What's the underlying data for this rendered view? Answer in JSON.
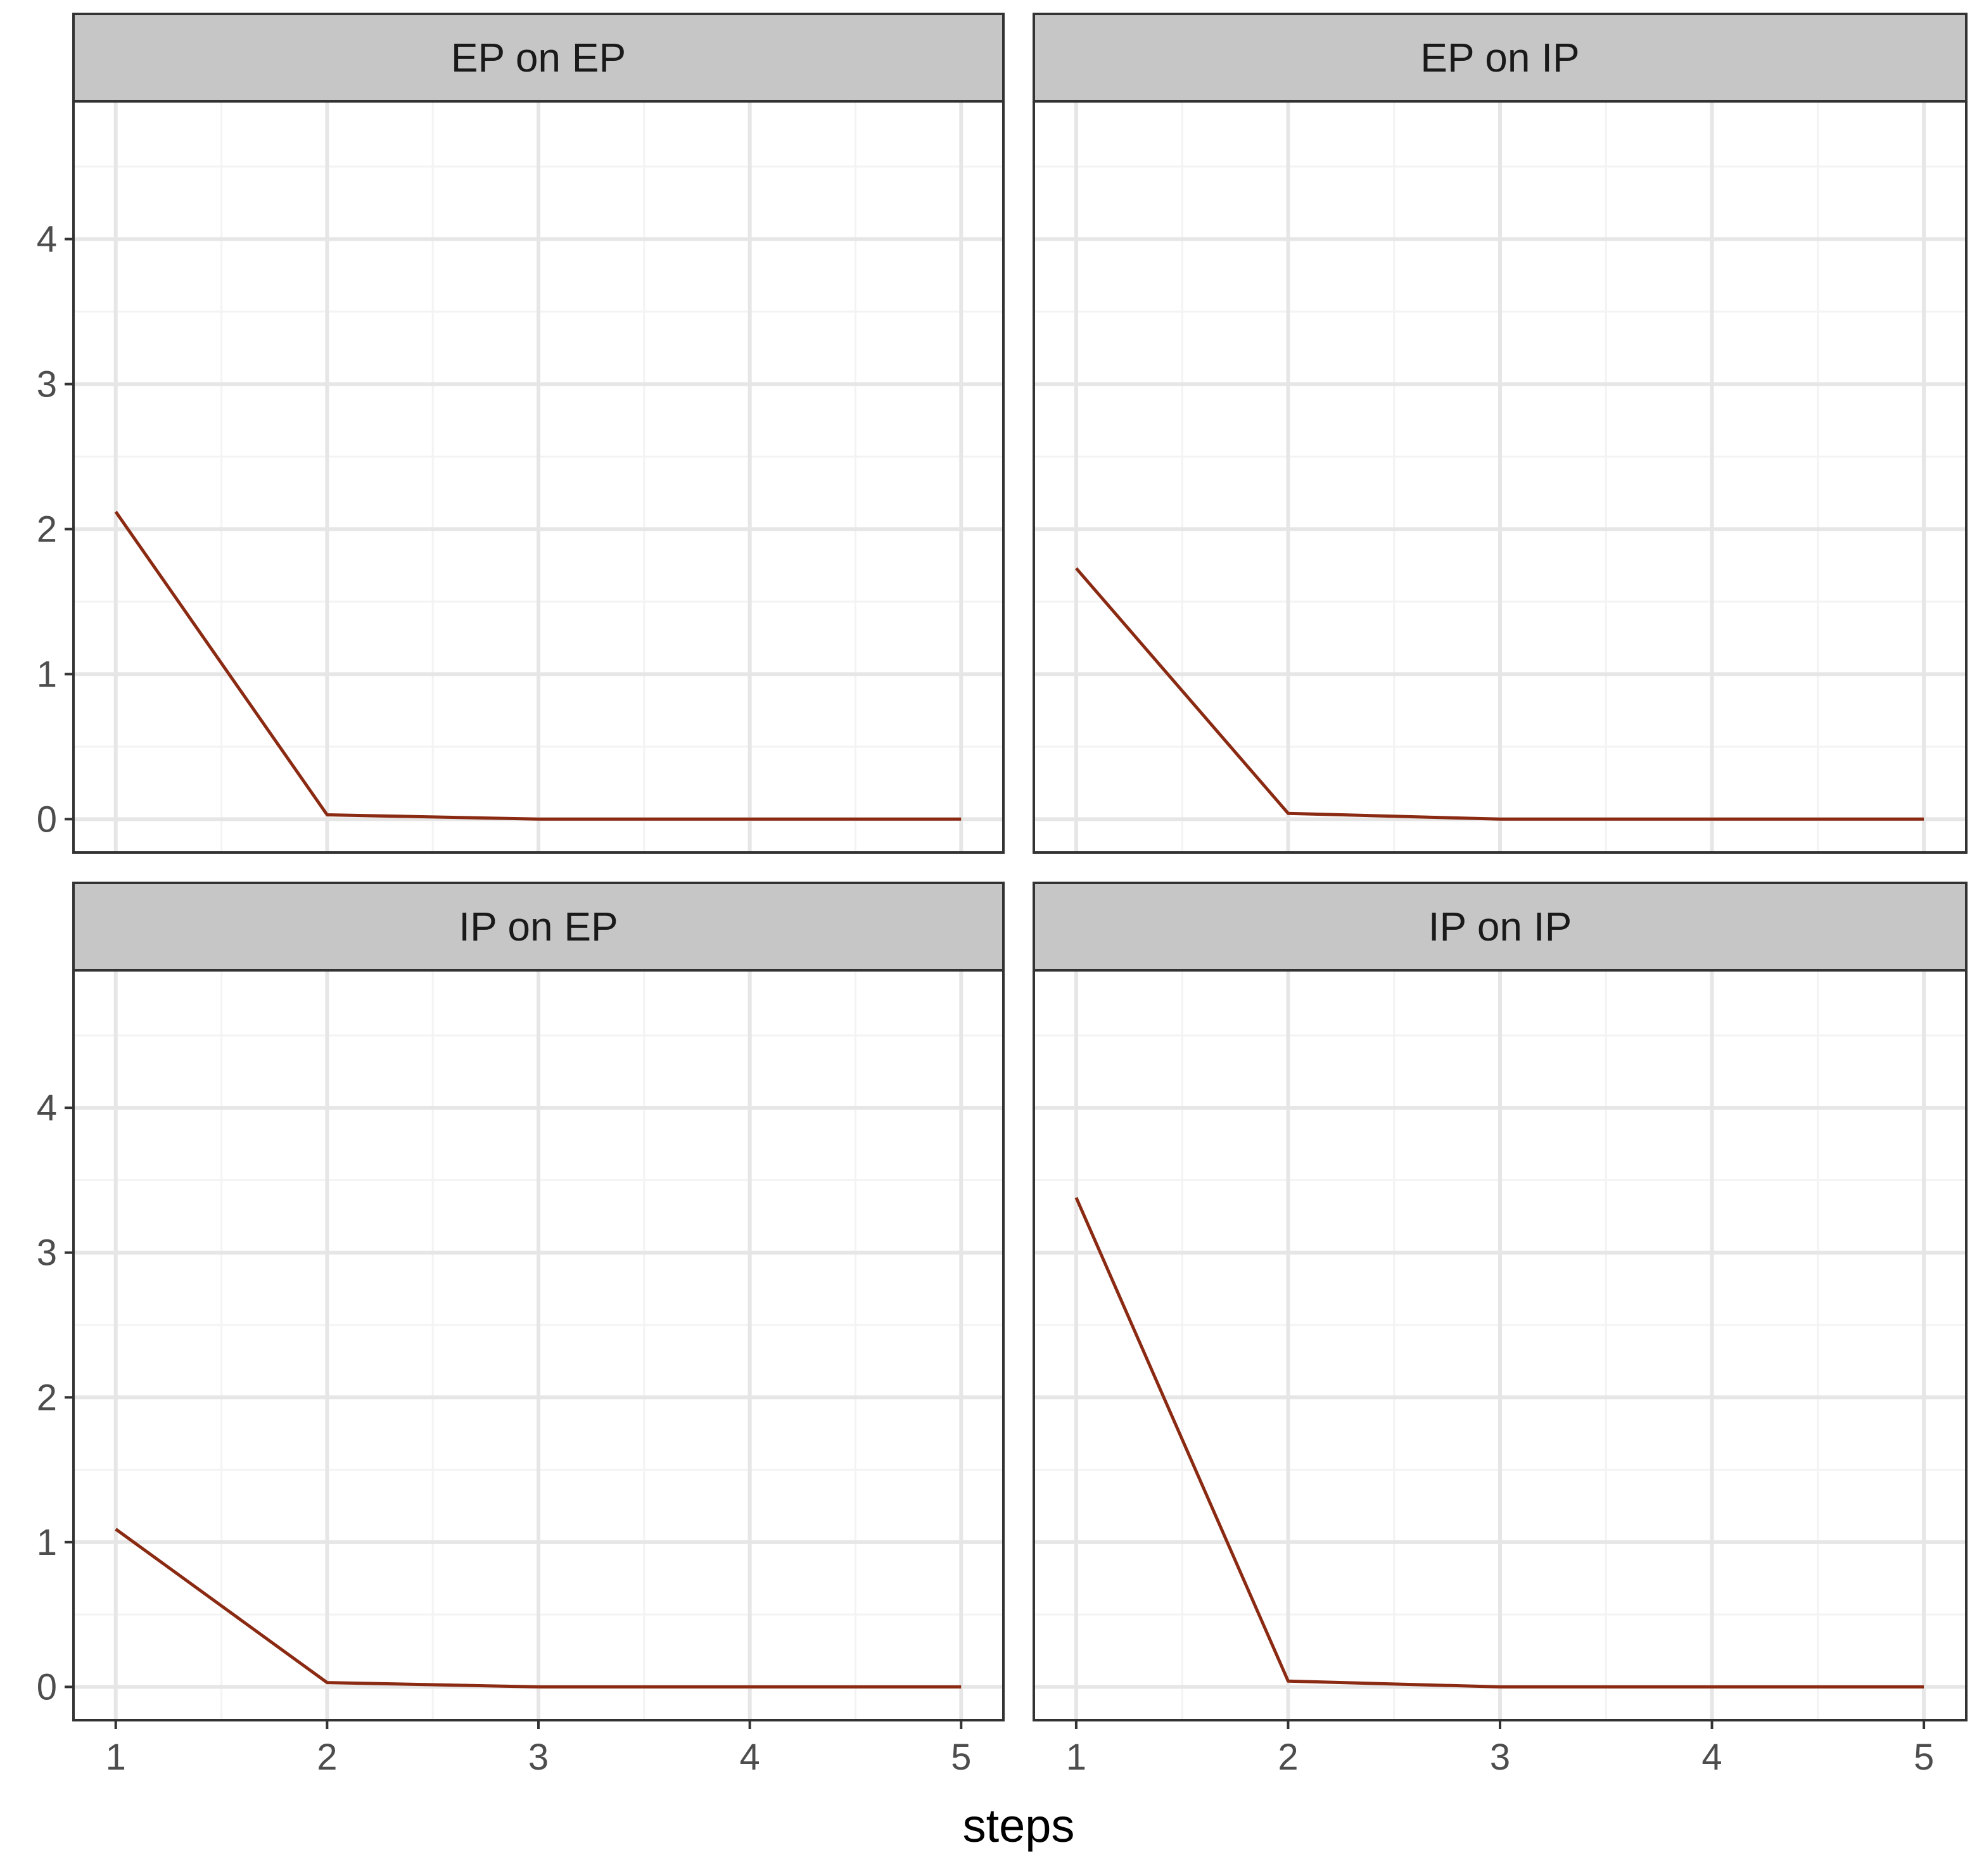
{
  "chart_data": [
    {
      "type": "line",
      "title": "EP on EP",
      "x": [
        1,
        2,
        3,
        4,
        5
      ],
      "series": [
        {
          "values": [
            2.12,
            0.03,
            0.0,
            0.0,
            0.0
          ]
        }
      ],
      "xlabel": "steps",
      "ylabel": "",
      "xlim": [
        0.8,
        5.2
      ],
      "ylim": [
        -0.23,
        4.95
      ],
      "xticks": [
        1,
        2,
        3,
        4,
        5
      ],
      "yticks": [
        0,
        1,
        2,
        3,
        4
      ],
      "grid": true
    },
    {
      "type": "line",
      "title": "EP on IP",
      "x": [
        1,
        2,
        3,
        4,
        5
      ],
      "series": [
        {
          "values": [
            1.73,
            0.04,
            0.0,
            0.0,
            0.0
          ]
        }
      ],
      "xlabel": "steps",
      "ylabel": "",
      "xlim": [
        0.8,
        5.2
      ],
      "ylim": [
        -0.23,
        4.95
      ],
      "xticks": [
        1,
        2,
        3,
        4,
        5
      ],
      "yticks": [
        0,
        1,
        2,
        3,
        4
      ],
      "grid": true
    },
    {
      "type": "line",
      "title": "IP on EP",
      "x": [
        1,
        2,
        3,
        4,
        5
      ],
      "series": [
        {
          "values": [
            1.09,
            0.03,
            0.0,
            0.0,
            0.0
          ]
        }
      ],
      "xlabel": "steps",
      "ylabel": "",
      "xlim": [
        0.8,
        5.2
      ],
      "ylim": [
        -0.23,
        4.95
      ],
      "xticks": [
        1,
        2,
        3,
        4,
        5
      ],
      "yticks": [
        0,
        1,
        2,
        3,
        4
      ],
      "grid": true
    },
    {
      "type": "line",
      "title": "IP on IP",
      "x": [
        1,
        2,
        3,
        4,
        5
      ],
      "series": [
        {
          "values": [
            3.38,
            0.04,
            0.0,
            0.0,
            0.0
          ]
        }
      ],
      "xlabel": "steps",
      "ylabel": "",
      "xlim": [
        0.8,
        5.2
      ],
      "ylim": [
        -0.23,
        4.95
      ],
      "xticks": [
        1,
        2,
        3,
        4,
        5
      ],
      "yticks": [
        0,
        1,
        2,
        3,
        4
      ],
      "grid": true
    }
  ],
  "x_axis_title": "steps",
  "colors": {
    "line": "#8b2a12",
    "strip_fill": "#c6c6c6",
    "panel_border": "#333333",
    "grid_major": "#e6e6e6",
    "grid_minor": "#f3f3f3",
    "tick_label": "#4d4d4d"
  }
}
